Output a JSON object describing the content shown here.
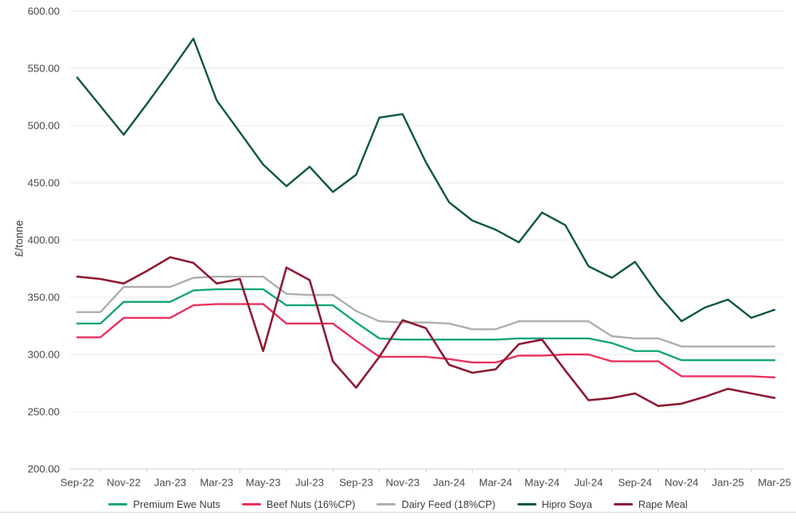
{
  "chart_data": {
    "type": "line",
    "title": "",
    "xlabel": "",
    "ylabel": "£/tonne",
    "ylim": [
      200,
      600
    ],
    "y_tick_step": 50,
    "y_tick_labels": [
      "600.00",
      "550.00",
      "500.00",
      "450.00",
      "400.00",
      "350.00",
      "300.00",
      "250.00",
      "200.00"
    ],
    "grid": "horizontal-only",
    "legend_position": "bottom-center",
    "x_label_every": 2,
    "x": [
      "Sep-22",
      "Oct-22",
      "Nov-22",
      "Dec-22",
      "Jan-23",
      "Feb-23",
      "Mar-23",
      "Apr-23",
      "May-23",
      "Jun-23",
      "Jul-23",
      "Aug-23",
      "Sep-23",
      "Oct-23",
      "Nov-23",
      "Dec-23",
      "Jan-24",
      "Feb-24",
      "Mar-24",
      "Apr-24",
      "May-24",
      "Jun-24",
      "Jul-24",
      "Aug-24",
      "Sep-24",
      "Oct-24",
      "Nov-24",
      "Dec-24",
      "Jan-25",
      "Feb-25",
      "Mar-25"
    ],
    "visible_x_tick_labels": [
      "Sep-22",
      "Nov-22",
      "Jan-23",
      "Mar-23",
      "May-23",
      "Jul-23",
      "Sep-23",
      "Nov-23",
      "Jan-24",
      "Mar-24",
      "May-24",
      "Jul-24",
      "Sep-24",
      "Nov-24",
      "Jan-25",
      "Mar-25"
    ],
    "series": [
      {
        "name": "Premium Ewe Nuts",
        "color": "#14a47c",
        "line_width": 2.4,
        "values": [
          327,
          327,
          346,
          346,
          346,
          356,
          357,
          357,
          357,
          343,
          343,
          343,
          328,
          314,
          313,
          313,
          313,
          313,
          313,
          314,
          314,
          314,
          314,
          310,
          303,
          303,
          295,
          295,
          295,
          295,
          295
        ]
      },
      {
        "name": "Beef Nuts (16%CP)",
        "color": "#e9305c",
        "line_width": 2.4,
        "values": [
          315,
          315,
          332,
          332,
          332,
          343,
          344,
          344,
          344,
          327,
          327,
          327,
          312,
          298,
          298,
          298,
          296,
          293,
          293,
          299,
          299,
          300,
          300,
          294,
          294,
          294,
          281,
          281,
          281,
          281,
          280
        ]
      },
      {
        "name": "Dairy Feed (18%CP)",
        "color": "#aeaeae",
        "line_width": 2.4,
        "values": [
          337,
          337,
          359,
          359,
          359,
          367,
          368,
          368,
          368,
          353,
          352,
          352,
          338,
          329,
          328,
          328,
          327,
          322,
          322,
          329,
          329,
          329,
          329,
          316,
          314,
          314,
          307,
          307,
          307,
          307,
          307
        ]
      },
      {
        "name": "Hipro Soya",
        "color": "#0c573d",
        "line_width": 2.4,
        "values": [
          542,
          517,
          492,
          519,
          547,
          576,
          522,
          494,
          466,
          447,
          464,
          442,
          457,
          507,
          510,
          468,
          433,
          417,
          409,
          398,
          424,
          413,
          377,
          367,
          381,
          352,
          329,
          341,
          348,
          332,
          339
        ]
      },
      {
        "name": "Rape Meal",
        "color": "#8d1a33",
        "line_width": 2.6,
        "values": [
          368,
          366,
          362,
          373,
          385,
          380,
          362,
          366,
          303,
          376,
          365,
          294,
          271,
          298,
          330,
          323,
          291,
          284,
          287,
          309,
          313,
          286,
          260,
          262,
          266,
          255,
          257,
          263,
          270,
          266,
          262
        ]
      }
    ],
    "style": {
      "grid_color": "#e9e9e9",
      "axis_line_color": "#d2d2d2",
      "tick_color": "#cccccc",
      "axis_text_color": "#474747",
      "background": "#ffffff"
    }
  }
}
